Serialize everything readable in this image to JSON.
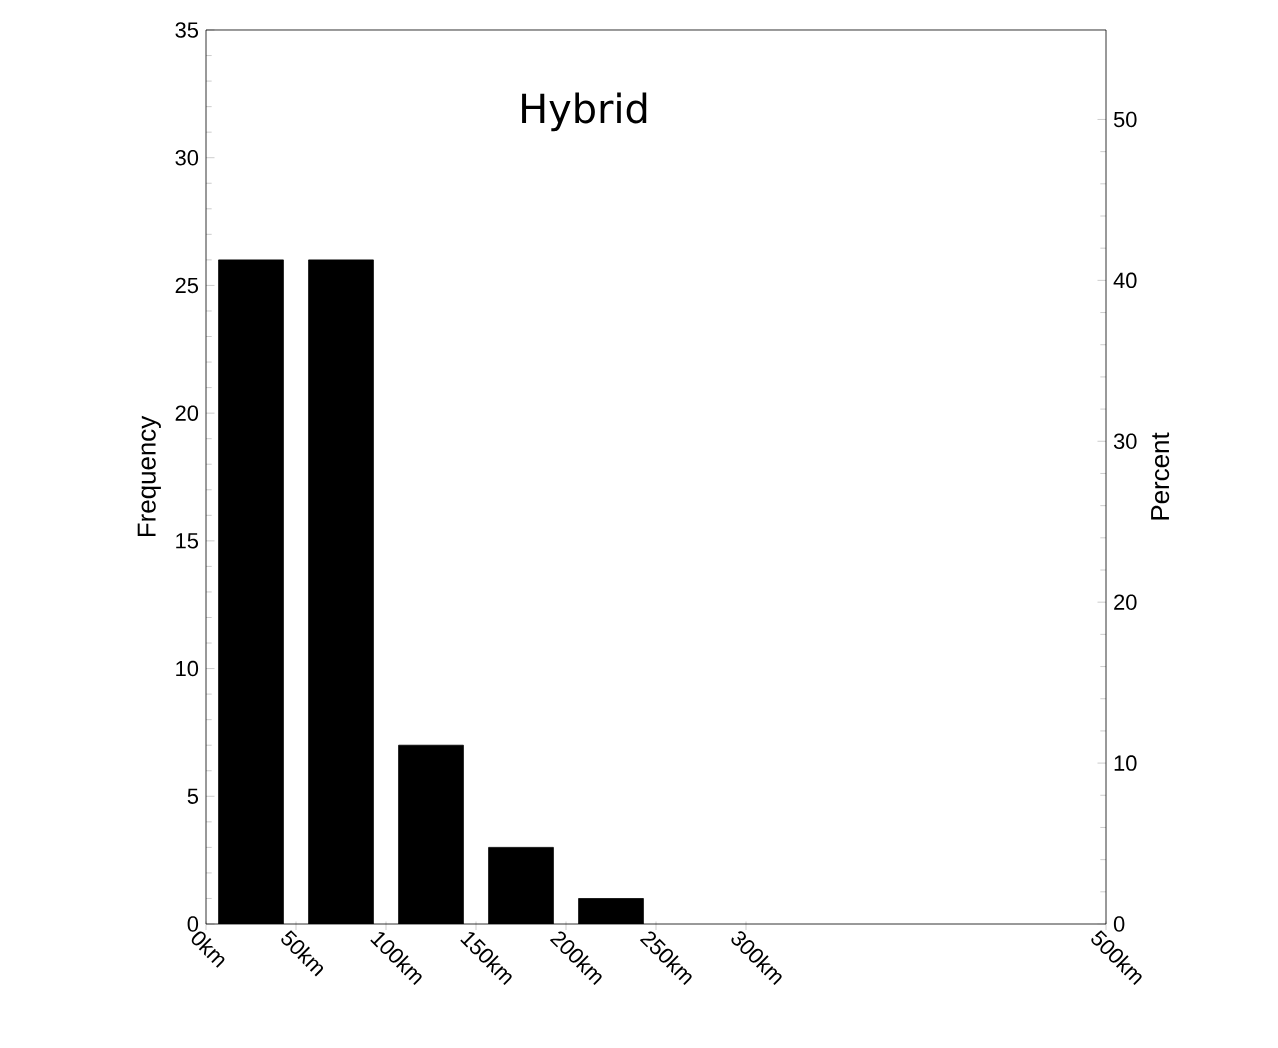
{
  "chart_data": {
    "type": "histogram",
    "title": "Hybrid",
    "ylabel": "Frequency",
    "y2label": "Percent",
    "bins": [
      0,
      50,
      100,
      150,
      200,
      250
    ],
    "values": [
      26,
      26,
      7,
      3,
      1
    ],
    "color": "#000000",
    "xlim": [
      0,
      500
    ],
    "xticks": [
      {
        "value": 0,
        "label": "0km"
      },
      {
        "value": 50,
        "label": "50km"
      },
      {
        "value": 100,
        "label": "100km"
      },
      {
        "value": 150,
        "label": "150km"
      },
      {
        "value": 200,
        "label": "200km"
      },
      {
        "value": 250,
        "label": "250km"
      },
      {
        "value": 300,
        "label": "300km"
      },
      {
        "value": 500,
        "label": "500km"
      }
    ],
    "ylim": [
      0,
      35
    ],
    "yticks": [
      0,
      5,
      10,
      15,
      20,
      25,
      30,
      35
    ],
    "y2lim": [
      0,
      55.56
    ],
    "y2ticks": [
      0,
      10,
      20,
      30,
      40,
      50
    ],
    "grid": false
  }
}
